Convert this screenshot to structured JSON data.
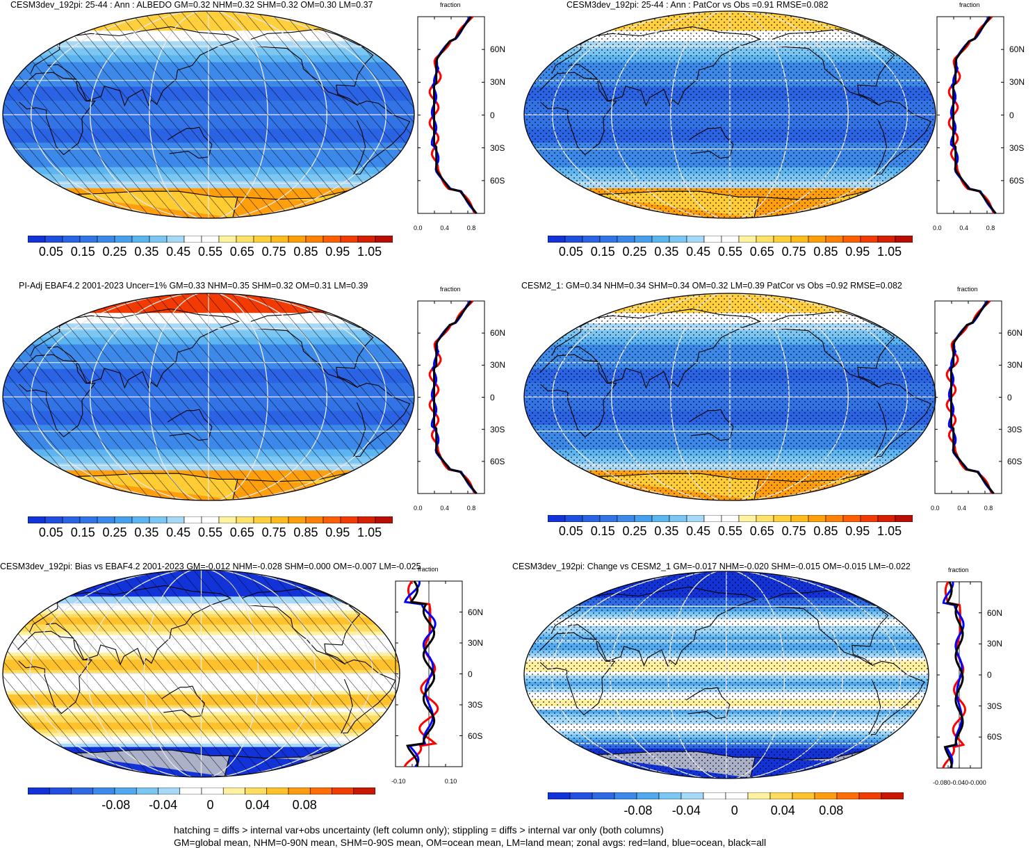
{
  "panels": [
    {
      "title": "CESM3dev_192pi: 25-44 : Ann : ALBEDO GM=0.32 NHM=0.32 SHM=0.32 OM=0.30 LM=0.37",
      "pattern": "hatch",
      "field": "albedo",
      "zonal_title": "fraction",
      "zonal_xticks": [
        "0.0",
        "0.4",
        "0.8"
      ],
      "zonal_yticks": [
        "60N",
        "30N",
        "0",
        "30S",
        "60S"
      ],
      "colorbar_labels": [
        "0.05",
        "0.15",
        "0.25",
        "0.35",
        "0.45",
        "0.55",
        "0.65",
        "0.75",
        "0.85",
        "0.95",
        "1.05"
      ]
    },
    {
      "title": "CESM3dev_192pi: 25-44 : Ann : PatCor vs Obs =0.91 RMSE=0.082",
      "pattern": "stipple",
      "field": "albedo",
      "zonal_title": "fraction",
      "zonal_xticks": [
        "0.0",
        "0.4",
        "0.8"
      ],
      "zonal_yticks": [
        "60N",
        "30N",
        "0",
        "30S",
        "60S"
      ],
      "colorbar_labels": [
        "0.05",
        "0.15",
        "0.25",
        "0.35",
        "0.45",
        "0.55",
        "0.65",
        "0.75",
        "0.85",
        "0.95",
        "1.05"
      ]
    },
    {
      "title": "PI-Adj EBAF4.2 2001-2023 Uncer=1% GM=0.33 NHM=0.35 SHM=0.32 OM=0.31 LM=0.39",
      "pattern": "hatch",
      "field": "albedo_obs",
      "zonal_title": "fraction",
      "zonal_xticks": [
        "0.0",
        "0.4",
        "0.8"
      ],
      "zonal_yticks": [
        "60N",
        "30N",
        "0",
        "30S",
        "60S"
      ],
      "colorbar_labels": [
        "0.05",
        "0.15",
        "0.25",
        "0.35",
        "0.45",
        "0.55",
        "0.65",
        "0.75",
        "0.85",
        "0.95",
        "1.05"
      ]
    },
    {
      "title": "CESM2_1: GM=0.34 NHM=0.34 SHM=0.34 OM=0.32 LM=0.39 PatCor vs Obs =0.92 RMSE=0.082",
      "pattern": "stipple",
      "field": "albedo",
      "zonal_title": "fraction",
      "zonal_xticks": [
        "0.0",
        "0.4",
        "0.8"
      ],
      "zonal_yticks": [
        "60N",
        "30N",
        "0",
        "30S",
        "60S"
      ],
      "colorbar_labels": [
        "0.05",
        "0.15",
        "0.25",
        "0.35",
        "0.45",
        "0.55",
        "0.65",
        "0.75",
        "0.85",
        "0.95",
        "1.05"
      ]
    },
    {
      "title": "CESM3dev_192pi: Bias vs EBAF4.2 2001-2023 GM=-0.012 NHM=-0.028 SHM=0.000 OM=-0.007 LM=-0.025",
      "pattern": "hatch",
      "field": "diff",
      "zonal_title": "fraction",
      "zonal_xticks": [
        "-0.10",
        "0.10"
      ],
      "zonal_yticks": [
        "60N",
        "30N",
        "0",
        "30S",
        "60S"
      ],
      "colorbar_labels": [
        "-0.08",
        "-0.04",
        "0",
        "0.04",
        "0.08"
      ]
    },
    {
      "title": "CESM3dev_192pi: Change vs CESM2_1 GM=-0.017 NHM=-0.020 SHM=-0.015 OM=-0.015 LM=-0.022",
      "pattern": "stipple",
      "field": "diff",
      "zonal_title": "fraction",
      "zonal_xticks": [
        "-0.080",
        "-0.040",
        "-0.000"
      ],
      "zonal_yticks": [
        "60N",
        "30N",
        "0",
        "30S",
        "60S"
      ],
      "colorbar_labels": [
        "-0.08",
        "-0.04",
        "0",
        "0.04",
        "0.08"
      ]
    }
  ],
  "colors": {
    "seq": [
      "#1233d8",
      "#1f4fe0",
      "#2a63e3",
      "#3274e6",
      "#3d89ea",
      "#47a0ee",
      "#5cb4f1",
      "#7cc6f4",
      "#a6d8f7",
      "#ffffff",
      "#ffffff",
      "#fff3a0",
      "#ffe26a",
      "#ffd03c",
      "#ffbb1c",
      "#ff9f0c",
      "#ff8006",
      "#ff5e04",
      "#f23a03",
      "#d61f03",
      "#b80d02"
    ],
    "div": [
      "#1233d8",
      "#2250e0",
      "#2f6ae4",
      "#3d89ea",
      "#52a9ef",
      "#7cc6f4",
      "#a6d8f7",
      "#ffffff",
      "#ffffff",
      "#fff1a0",
      "#ffdb60",
      "#ffc22c",
      "#ff9c10",
      "#ff6e06",
      "#ef3d04",
      "#c81703"
    ],
    "zonal_land": "#ff0000",
    "zonal_ocean": "#0000ff",
    "zonal_all": "#000000",
    "missing": "#c8c8c8"
  },
  "footer": {
    "line1": "hatching = diffs > internal var+obs uncertainty (left column only); stippling = diffs > internal var only (both columns)",
    "line2": "GM=global mean, NHM=0-90N mean, SHM=0-90S mean, OM=ocean mean, LM=land mean; zonal avgs: red=land, blue=ocean, black=all"
  }
}
